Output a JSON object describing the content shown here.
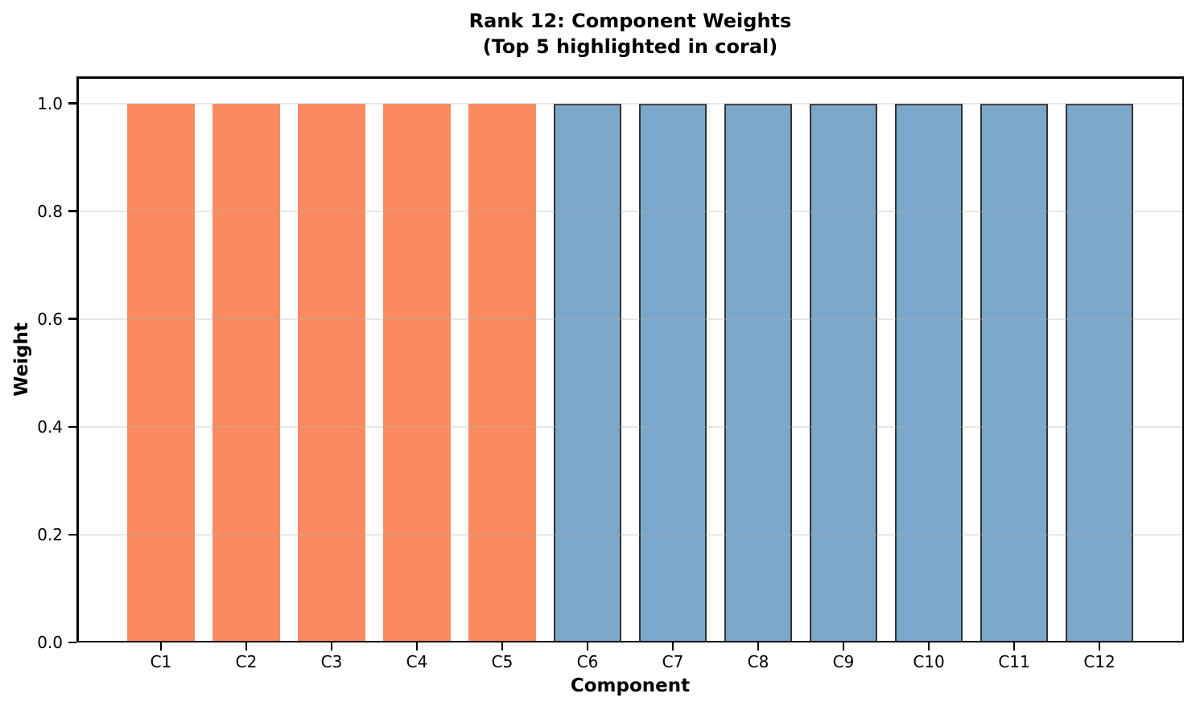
{
  "chart_data": {
    "type": "bar",
    "title": "Rank 12: Component Weights",
    "subtitle": "(Top 5 highlighted in coral)",
    "xlabel": "Component",
    "ylabel": "Weight",
    "categories": [
      "C1",
      "C2",
      "C3",
      "C4",
      "C5",
      "C6",
      "C7",
      "C8",
      "C9",
      "C10",
      "C11",
      "C12"
    ],
    "values": [
      1.0,
      1.0,
      1.0,
      1.0,
      1.0,
      1.0,
      1.0,
      1.0,
      1.0,
      1.0,
      1.0,
      1.0
    ],
    "highlight_count": 5,
    "ytick_labels": [
      "0.0",
      "0.2",
      "0.4",
      "0.6",
      "0.8",
      "1.0"
    ],
    "ylim": [
      0,
      1.05
    ],
    "grid": "y-only",
    "legend": false,
    "colors": {
      "highlight_fill": "#FC8A60",
      "default_fill": "#7BA7CB",
      "default_edge": "#333333",
      "grid_color": "#B0B0B0",
      "grid_alpha": 0.3,
      "axis_color": "#000000",
      "background": "#FFFFFF"
    }
  }
}
